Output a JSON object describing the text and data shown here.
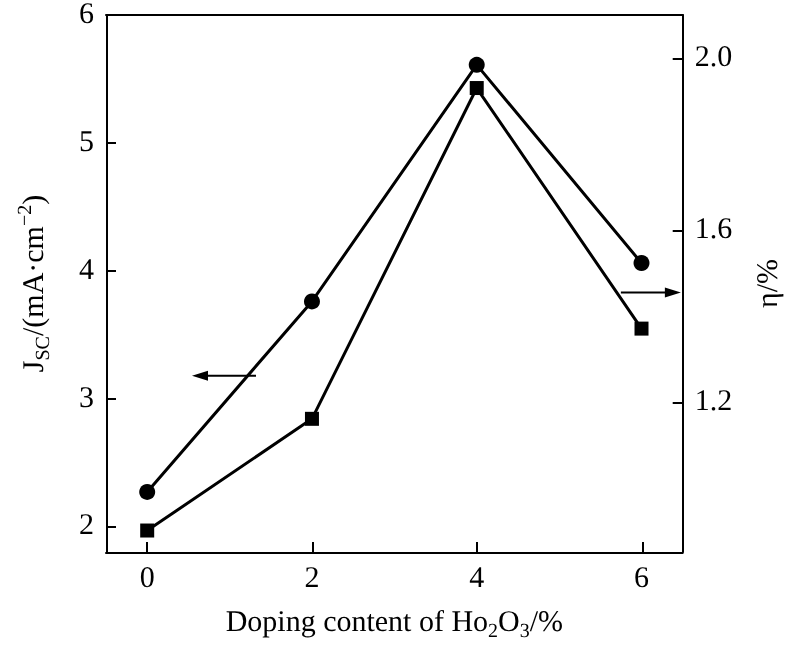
{
  "chart_data": {
    "type": "line",
    "xlabel": "Doping content of Ho$_{2}$O$_{3}$/%",
    "ylabel": "J$_{SC}$/(mA·cm$^{−2}$)",
    "y2label": "η/%",
    "x": [
      0,
      2,
      4,
      6
    ],
    "xlim": [
      -0.5,
      6.5
    ],
    "xticks": [
      0,
      2,
      4,
      6
    ],
    "ylim": [
      1.8,
      6
    ],
    "yticks": [
      2,
      3,
      4,
      5,
      6
    ],
    "y2lim": [
      0.85,
      2.1
    ],
    "y2ticks": [
      1.2,
      1.6,
      {
        "value": 2,
        "label": "2.0"
      }
    ],
    "series": [
      {
        "color": "#000000",
        "marker": "circle",
        "values": [
          2.27,
          3.76,
          5.61,
          4.06
        ]
      },
      {
        "color": "#000000",
        "marker": "square",
        "axis": "y2",
        "values": [
          0.9,
          1.16,
          1.93,
          1.37
        ]
      }
    ],
    "grid": false,
    "line_style": "solid"
  }
}
